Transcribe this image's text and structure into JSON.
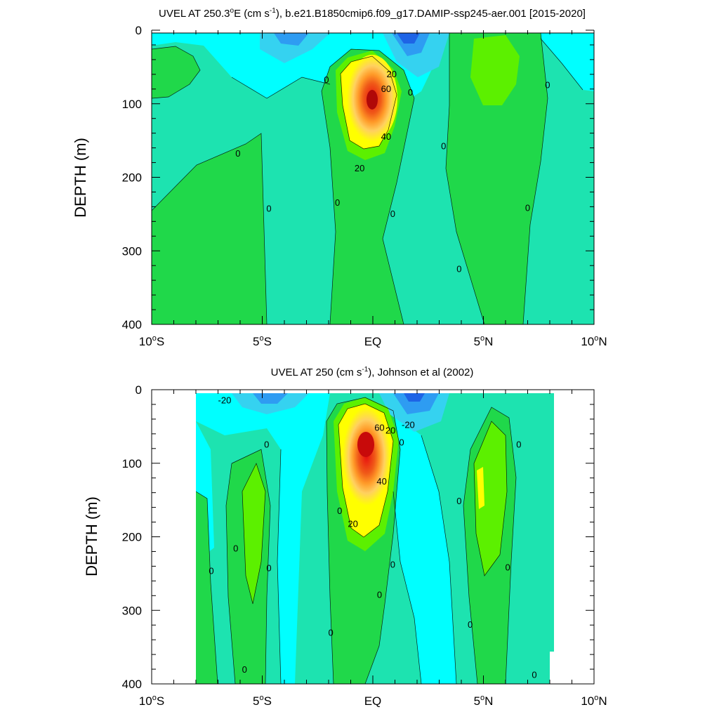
{
  "colors": {
    "deep_blue": "#1e64e6",
    "blue": "#2e9cf2",
    "light_blue": "#35d2f0",
    "cyan": "#00ffff",
    "aqua_green": "#1de3b0",
    "green": "#20d84a",
    "bright_green": "#5cf000",
    "yellow_green": "#d9f800",
    "yellow": "#ffff00",
    "light_orange": "#ffd060",
    "orange": "#ff9a28",
    "red_orange": "#f05a18",
    "red": "#e81010"
  },
  "chart_data": [
    {
      "type": "contour",
      "title": "UVEL AT 250.3°E (cm s-1), b.e21.B1850cmip6.f09_g17.DAMIP-ssp245-aer.001 [2015-2020]",
      "title_parts": [
        "UVEL AT 250.3",
        "o",
        "E (cm s",
        "-1",
        "), b.e21.B1850cmip6.f09_g17.DAMIP-ssp245-aer.001 [2015-2020]"
      ],
      "ylabel": "DEPTH (m)",
      "xlim": [
        -10,
        10
      ],
      "ylim": [
        400,
        0
      ],
      "x_ticks": [
        {
          "value": -10,
          "num": "10",
          "deg": "o",
          "hem": "S"
        },
        {
          "value": -5,
          "num": "5",
          "deg": "o",
          "hem": "S"
        },
        {
          "value": 0,
          "num": "EQ",
          "deg": "",
          "hem": ""
        },
        {
          "value": 5,
          "num": "5",
          "deg": "o",
          "hem": "N"
        },
        {
          "value": 10,
          "num": "10",
          "deg": "o",
          "hem": "N"
        }
      ],
      "y_ticks": [
        0,
        100,
        200,
        300,
        400
      ],
      "data_x_range": [
        -10,
        10
      ],
      "data_y_range": [
        5,
        400
      ],
      "core": {
        "lat": 0.0,
        "depth": 95,
        "max_cm_s": 100
      },
      "contour_labels": [
        {
          "text": "0",
          "lat": -2.1,
          "depth": 68
        },
        {
          "text": "20",
          "lat": 0.85,
          "depth": 60
        },
        {
          "text": "60",
          "lat": 0.6,
          "depth": 80
        },
        {
          "text": "0",
          "lat": 1.7,
          "depth": 85
        },
        {
          "text": "0",
          "lat": 7.9,
          "depth": 75
        },
        {
          "text": "0",
          "lat": -6.1,
          "depth": 168
        },
        {
          "text": "0",
          "lat": 3.2,
          "depth": 158
        },
        {
          "text": "40",
          "lat": 0.6,
          "depth": 145
        },
        {
          "text": "20",
          "lat": -0.6,
          "depth": 188
        },
        {
          "text": "0",
          "lat": -1.6,
          "depth": 235
        },
        {
          "text": "0",
          "lat": 0.9,
          "depth": 250
        },
        {
          "text": "0",
          "lat": -4.7,
          "depth": 243
        },
        {
          "text": "0",
          "lat": 7.0,
          "depth": 242
        },
        {
          "text": "0",
          "lat": 3.9,
          "depth": 325
        }
      ]
    },
    {
      "type": "contour",
      "title": "UVEL AT 250 (cm s-1), Johnson et al (2002)",
      "title_parts": [
        "UVEL AT 250 (cm s",
        "-1",
        "), Johnson et al (2002)"
      ],
      "ylabel": "DEPTH (m)",
      "xlim": [
        -10,
        10
      ],
      "ylim": [
        400,
        0
      ],
      "x_ticks": [
        {
          "value": -10,
          "num": "10",
          "deg": "o",
          "hem": "S"
        },
        {
          "value": -5,
          "num": "5",
          "deg": "o",
          "hem": "S"
        },
        {
          "value": 0,
          "num": "EQ",
          "deg": "",
          "hem": ""
        },
        {
          "value": 5,
          "num": "5",
          "deg": "o",
          "hem": "N"
        },
        {
          "value": 10,
          "num": "10",
          "deg": "o",
          "hem": "N"
        }
      ],
      "y_ticks": [
        0,
        100,
        200,
        300,
        400
      ],
      "data_x_range": [
        -7.8,
        8.2
      ],
      "data_y_range": [
        5,
        400
      ],
      "core": {
        "lat": -0.3,
        "depth": 72,
        "max_cm_s": 100
      },
      "contour_labels": [
        {
          "text": "-20",
          "lat": -6.7,
          "depth": 15
        },
        {
          "text": "-20",
          "lat": 1.6,
          "depth": 48
        },
        {
          "text": "60",
          "lat": 0.3,
          "depth": 52
        },
        {
          "text": "20",
          "lat": 0.8,
          "depth": 56
        },
        {
          "text": "0",
          "lat": 1.3,
          "depth": 72
        },
        {
          "text": "0",
          "lat": -4.8,
          "depth": 75
        },
        {
          "text": "0",
          "lat": 6.6,
          "depth": 75
        },
        {
          "text": "40",
          "lat": 0.4,
          "depth": 125
        },
        {
          "text": "0",
          "lat": 3.9,
          "depth": 152
        },
        {
          "text": "0",
          "lat": -1.5,
          "depth": 165
        },
        {
          "text": "20",
          "lat": -0.9,
          "depth": 183
        },
        {
          "text": "0",
          "lat": -6.2,
          "depth": 216
        },
        {
          "text": "0",
          "lat": -7.3,
          "depth": 247
        },
        {
          "text": "0",
          "lat": -4.7,
          "depth": 243
        },
        {
          "text": "0",
          "lat": 0.9,
          "depth": 238
        },
        {
          "text": "0",
          "lat": 6.1,
          "depth": 242
        },
        {
          "text": "0",
          "lat": 0.3,
          "depth": 279
        },
        {
          "text": "0",
          "lat": 4.4,
          "depth": 320
        },
        {
          "text": "0",
          "lat": -1.9,
          "depth": 331
        },
        {
          "text": "0",
          "lat": -5.8,
          "depth": 381
        },
        {
          "text": "0",
          "lat": 7.3,
          "depth": 388
        }
      ]
    }
  ]
}
